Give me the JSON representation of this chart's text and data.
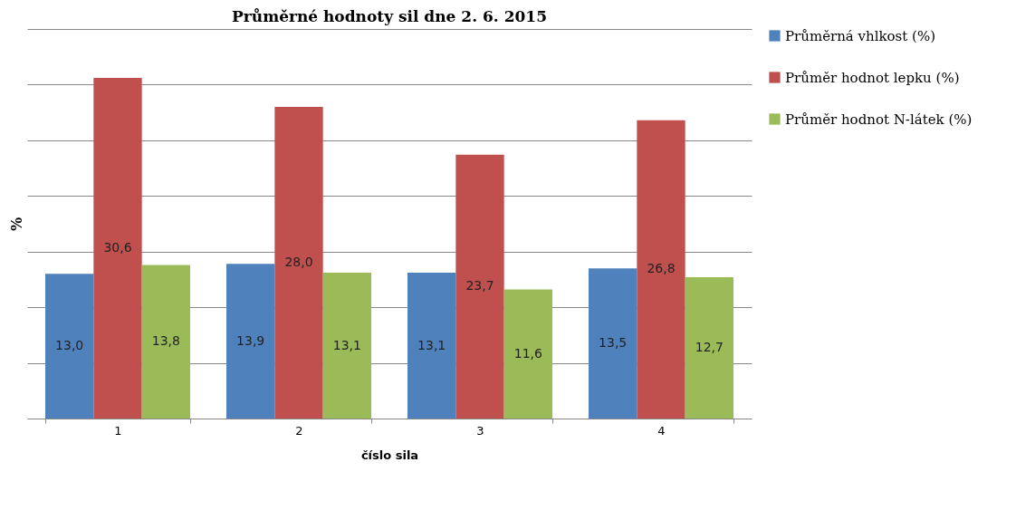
{
  "chart_data": {
    "type": "bar",
    "title": "Průměrné hodnoty sil dne 2. 6. 2015",
    "xlabel": "číslo sila",
    "ylabel": "%",
    "categories": [
      "1",
      "2",
      "3",
      "4"
    ],
    "series": [
      {
        "name": "Průměrná  vhlkost (%)",
        "color": "#4f81bd",
        "values": [
          13.0,
          13.9,
          13.1,
          13.5
        ],
        "value_labels": [
          "13,0",
          "13,9",
          "13,1",
          "13,5"
        ]
      },
      {
        "name": "Průměr hodnot lepku (%)",
        "color": "#c0504d",
        "values": [
          30.6,
          28.0,
          23.7,
          26.8
        ],
        "value_labels": [
          "30,6",
          "28,0",
          "23,7",
          "26,8"
        ]
      },
      {
        "name": "Průměr hodnot N-látek (%)",
        "color": "#9bbb59",
        "values": [
          13.8,
          13.1,
          11.6,
          12.7
        ],
        "value_labels": [
          "13,8",
          "13,1",
          "11,6",
          "12,7"
        ]
      }
    ],
    "tick_labels": "x",
    "grid": "y",
    "legend": "right"
  }
}
